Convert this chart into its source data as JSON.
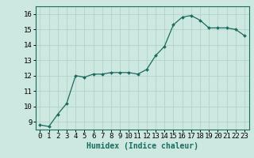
{
  "x": [
    0,
    1,
    2,
    3,
    4,
    5,
    6,
    7,
    8,
    9,
    10,
    11,
    12,
    13,
    14,
    15,
    16,
    17,
    18,
    19,
    20,
    21,
    22,
    23
  ],
  "y": [
    8.8,
    8.7,
    9.5,
    10.2,
    12.0,
    11.9,
    12.1,
    12.1,
    12.2,
    12.2,
    12.2,
    12.1,
    12.4,
    13.3,
    13.9,
    15.3,
    15.8,
    15.9,
    15.6,
    15.1,
    15.1,
    15.1,
    15.0,
    14.6
  ],
  "line_color": "#1a6b5e",
  "marker": "D",
  "marker_size": 2.0,
  "bg_color": "#cce8e0",
  "grid_color": "#b0d4ca",
  "xlabel": "Humidex (Indice chaleur)",
  "xlabel_fontsize": 7,
  "tick_fontsize": 6.5,
  "ylim": [
    8.5,
    16.5
  ],
  "xlim": [
    -0.5,
    23.5
  ],
  "yticks": [
    9,
    10,
    11,
    12,
    13,
    14,
    15,
    16
  ],
  "xticks": [
    0,
    1,
    2,
    3,
    4,
    5,
    6,
    7,
    8,
    9,
    10,
    11,
    12,
    13,
    14,
    15,
    16,
    17,
    18,
    19,
    20,
    21,
    22,
    23
  ]
}
